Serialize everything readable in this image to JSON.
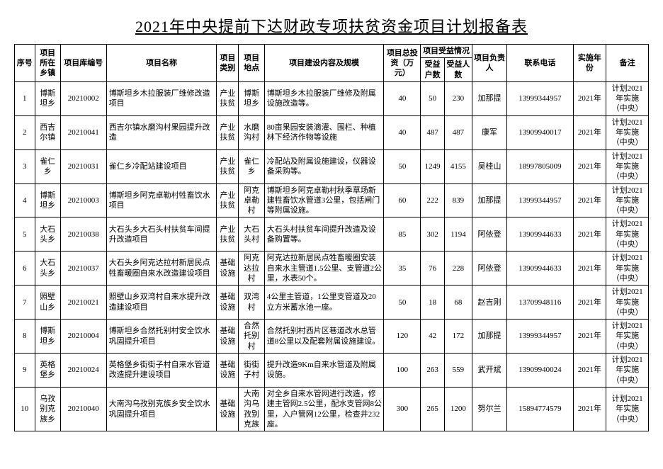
{
  "title": "2021年中央提前下达财政专项扶贫资金项目计划报备表",
  "headers": {
    "seq": "序号",
    "town": "项目所在乡镇",
    "code": "项目库编号",
    "name": "项目名称",
    "type": "项目类别",
    "loc": "项目地点",
    "content": "项目建设内容及规模",
    "invest": "项目总投资（万元）",
    "benefit": "项目受益情况",
    "hh": "受益户数",
    "pp": "受益人数",
    "person": "项目负责人",
    "phone": "联系电话",
    "year": "实施年份",
    "remark": "备注"
  },
  "rows": [
    {
      "seq": "1",
      "town": "博斯坦乡",
      "code": "20210002",
      "name": "博斯坦乡木拉服装厂维修改造项目",
      "type": "产业扶贫",
      "loc": "博斯坦乡",
      "content": "博斯坦乡木拉服装厂维修及附属设施改造等。",
      "invest": "40",
      "hh": "50",
      "pp": "230",
      "person": "加那提",
      "phone": "13999344957",
      "year": "2021年",
      "remark": "计划2021年实施（中央）"
    },
    {
      "seq": "2",
      "town": "西吉尔镇",
      "code": "20210041",
      "name": "西吉尔镇水磨沟村果园提升改造",
      "type": "产业扶贫",
      "loc": "水磨沟村",
      "content": "80亩果园安装滴灌、围栏、种植林下经济作物等设施",
      "invest": "40",
      "hh": "487",
      "pp": "487",
      "person": "康军",
      "phone": "13909940017",
      "year": "2021年",
      "remark": "计划2021年实施（中央）"
    },
    {
      "seq": "3",
      "town": "雀仁乡",
      "code": "20210031",
      "name": "雀仁乡冷配站建设项目",
      "type": "产业扶贫",
      "loc": "雀仁乡",
      "content": "冷配站及附属设施建设，仪器设备采购等。",
      "invest": "50",
      "hh": "1249",
      "pp": "4155",
      "person": "吴桂山",
      "phone": "18997805009",
      "year": "2021年",
      "remark": "计划2021年实施（中央）"
    },
    {
      "seq": "4",
      "town": "博斯坦乡",
      "code": "20210003",
      "name": "博斯坦乡阿克卓勒村牲畜饮水项目",
      "type": "产业扶贫",
      "loc": "阿克卓勒村",
      "content": "博斯坦乡阿克卓勒村秋季草场新建牲畜饮水管道3公里，包括闸门等附属设施。",
      "invest": "60",
      "hh": "222",
      "pp": "839",
      "person": "加那提",
      "phone": "13999344957",
      "year": "2021年",
      "remark": "计划2021年实施（中央）"
    },
    {
      "seq": "5",
      "town": "大石头乡",
      "code": "20210038",
      "name": "大石头乡大石头村扶贫车间提升改造项目",
      "type": "产业扶贫",
      "loc": "大石头村",
      "content": "大石头村扶贫车间提升改造及设备购置等。",
      "invest": "85",
      "hh": "302",
      "pp": "1194",
      "person": "阿依登",
      "phone": "13909944633",
      "year": "2021年",
      "remark": "计划2021年实施（中央）"
    },
    {
      "seq": "6",
      "town": "大石头乡",
      "code": "20210037",
      "name": "大石头乡阿克达拉村新居民点牲畜暖圈自来水改造建设项目",
      "type": "基础设施",
      "loc": "阿克达拉村",
      "content": "阿克达拉新居民点牲畜暖圈安装自来水主管道1.5公里、支管道2公里，水表50个。",
      "invest": "35",
      "hh": "76",
      "pp": "228",
      "person": "阿依登",
      "phone": "13909944633",
      "year": "2021年",
      "remark": "计划2021年实施（中央）"
    },
    {
      "seq": "7",
      "town": "照壁山乡",
      "code": "20210021",
      "name": "照壁山乡双湾村自来水提升改造建设项目",
      "type": "基础设施",
      "loc": "双湾村",
      "content": "4公里主管道，1公里支管道及20立方米蓄水池一座。",
      "invest": "50",
      "hh": "18",
      "pp": "68",
      "person": "赵吉刚",
      "phone": "13709948116",
      "year": "2021年",
      "remark": "计划2021年实施（中央）"
    },
    {
      "seq": "8",
      "town": "博斯坦乡",
      "code": "20210004",
      "name": "博斯坦乡合然托别村安全饮水巩固提升项目",
      "type": "基础设施",
      "loc": "合然托别村",
      "content": "合然托别村西片区巷道改水总管道8公里以及配套附属设施建设。",
      "invest": "120",
      "hh": "42",
      "pp": "172",
      "person": "加那提",
      "phone": "13999344957",
      "year": "2021年",
      "remark": "计划2021年实施（中央）"
    },
    {
      "seq": "9",
      "town": "英格堡乡",
      "code": "20210024",
      "name": "英格堡乡街街子村自来水管道改造提升建设项目",
      "type": "基础设施",
      "loc": "街街子村",
      "content": "提升改造9Km自来水管道及附属设施。",
      "invest": "100",
      "hh": "263",
      "pp": "559",
      "person": "武开斌",
      "phone": "13909940024",
      "year": "2021年",
      "remark": "计划2021年实施（中央）"
    },
    {
      "seq": "10",
      "town": "乌孜别克族乡",
      "code": "20210040",
      "name": "大南沟乌孜别克族乡安全饮水巩固提升项目",
      "type": "基础设施",
      "loc": "大南沟乌孜别克族",
      "content": "对全乡自来水管网进行改造，修建主管网2.5公里，配水支管网8公里，入户管网12公里，检查井232座。",
      "invest": "300",
      "hh": "265",
      "pp": "1200",
      "person": "努尔兰",
      "phone": "15894774579",
      "year": "2021年",
      "remark": "计划2021年实施（中央）"
    }
  ]
}
